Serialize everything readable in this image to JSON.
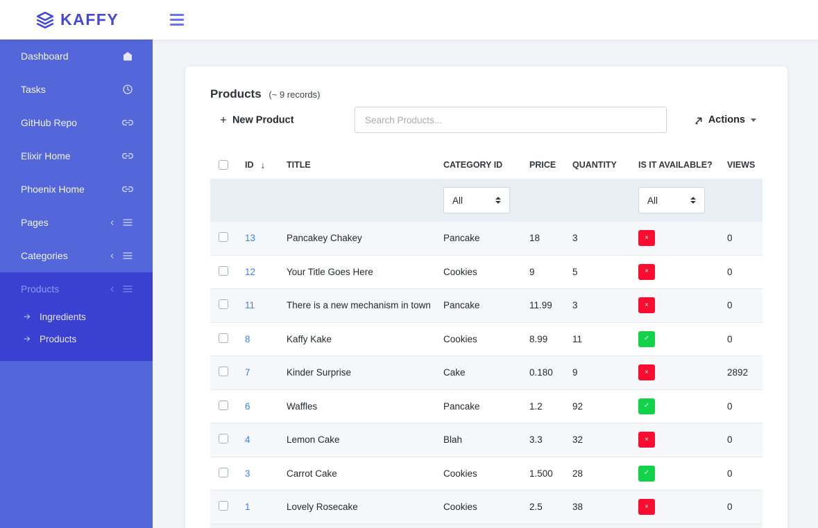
{
  "brand": {
    "name": "KAFFY"
  },
  "sidebar": {
    "items": [
      {
        "label": "Dashboard",
        "icon": "home",
        "collapsible": false
      },
      {
        "label": "Tasks",
        "icon": "clock",
        "collapsible": false
      },
      {
        "label": "GitHub Repo",
        "icon": "link",
        "collapsible": false
      },
      {
        "label": "Elixir Home",
        "icon": "link",
        "collapsible": false
      },
      {
        "label": "Phoenix Home",
        "icon": "link",
        "collapsible": false
      },
      {
        "label": "Pages",
        "icon": "menu",
        "collapsible": true
      },
      {
        "label": "Categories",
        "icon": "menu",
        "collapsible": true
      },
      {
        "label": "Products",
        "icon": "menu",
        "collapsible": true,
        "active": true,
        "children": [
          "Ingredients",
          "Products"
        ]
      }
    ]
  },
  "page": {
    "title": "Products",
    "records_note": "(~ 9 records)",
    "new_button": "New Product",
    "search_placeholder": "Search Products...",
    "actions_label": "Actions"
  },
  "icons": {
    "plus": "+",
    "sort_desc": "↓",
    "check": "✓",
    "cross": "×"
  },
  "table": {
    "columns": [
      "ID",
      "TITLE",
      "CATEGORY ID",
      "PRICE",
      "QUANTITY",
      "IS IT AVAILABLE?",
      "VIEWS"
    ],
    "filters": {
      "category_value": "All",
      "available_value": "All"
    },
    "rows": [
      {
        "id": "13",
        "title": "Pancakey Chakey",
        "category": "Pancake",
        "price": "18",
        "quantity": "3",
        "available": false,
        "views": "0"
      },
      {
        "id": "12",
        "title": "Your Title Goes Here",
        "category": "Cookies",
        "price": "9",
        "quantity": "5",
        "available": false,
        "views": "0"
      },
      {
        "id": "11",
        "title": "There is a new mechanism in town",
        "category": "Pancake",
        "price": "11.99",
        "quantity": "3",
        "available": false,
        "views": "0"
      },
      {
        "id": "8",
        "title": "Kaffy Kake",
        "category": "Cookies",
        "price": "8.99",
        "quantity": "11",
        "available": true,
        "views": "0"
      },
      {
        "id": "7",
        "title": "Kinder Surprise",
        "category": "Cake",
        "price": "0.180",
        "quantity": "9",
        "available": false,
        "views": "2892"
      },
      {
        "id": "6",
        "title": "Waffles",
        "category": "Pancake",
        "price": "1.2",
        "quantity": "92",
        "available": true,
        "views": "0"
      },
      {
        "id": "4",
        "title": "Lemon Cake",
        "category": "Blah",
        "price": "3.3",
        "quantity": "32",
        "available": false,
        "views": "0"
      },
      {
        "id": "3",
        "title": "Carrot Cake",
        "category": "Cookies",
        "price": "1.500",
        "quantity": "28",
        "available": true,
        "views": "0"
      },
      {
        "id": "1",
        "title": "Lovely Rosecake",
        "category": "Cookies",
        "price": "2.5",
        "quantity": "38",
        "available": false,
        "views": "0"
      }
    ],
    "colors": {
      "available_badge": "#12d24a",
      "unavailable_badge": "#f90c2f",
      "id_link": "#3d7ff7",
      "sidebar": "#5367da",
      "sidebar_active": "#3a41d0",
      "brand": "#4549d4"
    }
  }
}
